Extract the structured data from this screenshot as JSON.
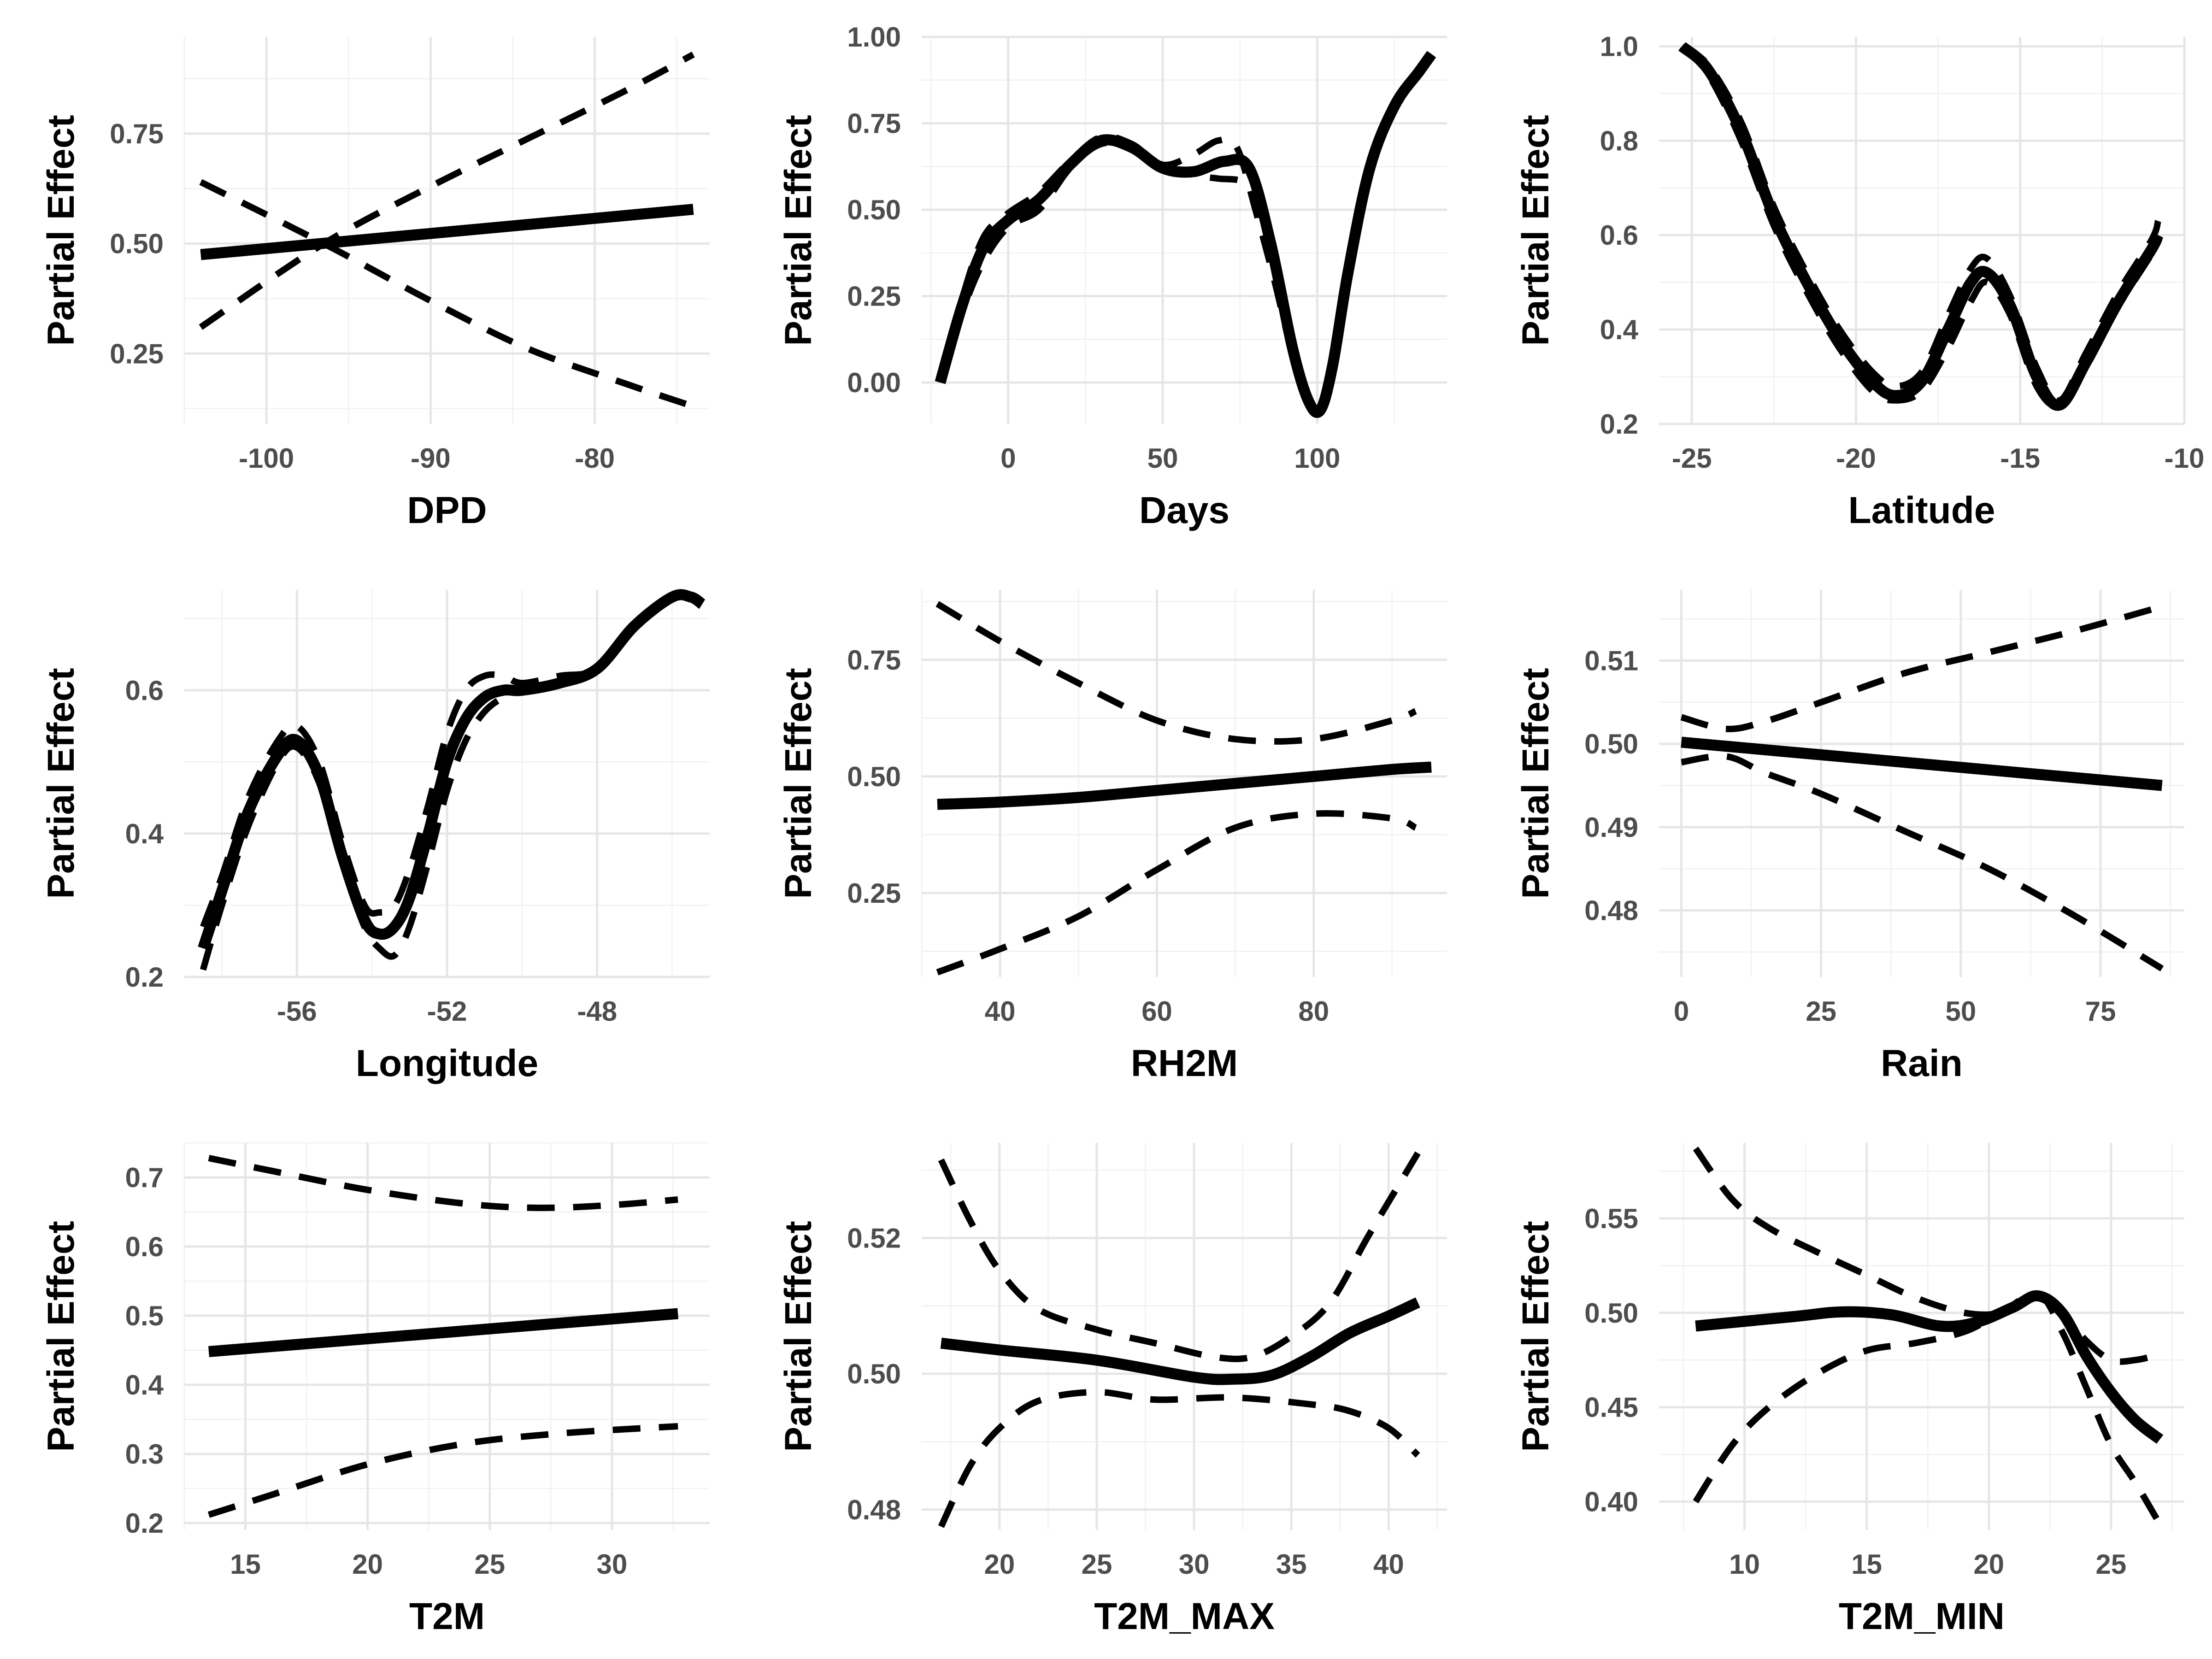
{
  "chart_data": [
    {
      "type": "line",
      "xlabel": "DPD",
      "ylabel": "Partial Effect",
      "xlim": [
        -105,
        -73
      ],
      "ylim": [
        0.09,
        0.97
      ],
      "xticks": [
        -100,
        -90,
        -80
      ],
      "xtick_labels": [
        "-100",
        "-90",
        "-80"
      ],
      "yticks": [
        0.25,
        0.5,
        0.75
      ],
      "ytick_labels": [
        "0.25",
        "0.50",
        "0.75"
      ],
      "series": [
        {
          "role": "estimate",
          "x": [
            -104,
            -74
          ],
          "y": [
            0.475,
            0.578
          ]
        },
        {
          "role": "lower",
          "x": [
            -104,
            -96.5,
            -90,
            -84,
            -78,
            -74
          ],
          "y": [
            0.64,
            0.5,
            0.37,
            0.26,
            0.18,
            0.13
          ]
        },
        {
          "role": "upper",
          "x": [
            -104,
            -96.5,
            -90,
            -84,
            -78,
            -74
          ],
          "y": [
            0.31,
            0.5,
            0.63,
            0.74,
            0.85,
            0.93
          ]
        }
      ]
    },
    {
      "type": "line",
      "xlabel": "Days",
      "ylabel": "Partial Effect",
      "xlim": [
        -28,
        142
      ],
      "ylim": [
        -0.12,
        1.0
      ],
      "xticks": [
        0,
        50,
        100
      ],
      "xtick_labels": [
        "0",
        "50",
        "100"
      ],
      "yticks": [
        0,
        0.25,
        0.5,
        0.75,
        1.0
      ],
      "ytick_labels": [
        "0.00",
        "0.25",
        "0.50",
        "0.75",
        "1.00"
      ],
      "series": [
        {
          "role": "estimate",
          "x": [
            -22,
            -15,
            -8,
            0,
            10,
            20,
            30,
            40,
            50,
            60,
            70,
            78,
            85,
            92,
            97,
            101,
            105,
            110,
            117,
            125,
            133,
            137
          ],
          "y": [
            0.0,
            0.22,
            0.39,
            0.47,
            0.53,
            0.63,
            0.7,
            0.68,
            0.62,
            0.61,
            0.64,
            0.62,
            0.4,
            0.1,
            -0.05,
            -0.08,
            0.05,
            0.32,
            0.62,
            0.8,
            0.9,
            0.95
          ]
        },
        {
          "role": "lower",
          "x": [
            -22,
            -15,
            -8,
            0,
            10,
            20,
            30,
            40,
            50,
            60,
            68,
            76,
            80,
            86,
            92,
            97,
            101,
            105,
            110,
            117,
            125,
            133,
            137
          ],
          "y": [
            0.0,
            0.2,
            0.35,
            0.45,
            0.5,
            0.62,
            0.69,
            0.68,
            0.63,
            0.6,
            0.59,
            0.58,
            0.52,
            0.35,
            0.1,
            -0.05,
            -0.08,
            0.05,
            0.32,
            0.62,
            0.8,
            0.9,
            0.95
          ]
        },
        {
          "role": "upper",
          "x": [
            -22,
            -15,
            -8,
            0,
            10,
            20,
            30,
            40,
            50,
            60,
            68,
            74,
            80,
            86,
            92,
            97,
            101,
            105,
            110,
            117,
            125,
            133,
            137
          ],
          "y": [
            0.0,
            0.24,
            0.42,
            0.49,
            0.55,
            0.64,
            0.71,
            0.69,
            0.63,
            0.66,
            0.7,
            0.68,
            0.5,
            0.3,
            0.08,
            -0.05,
            -0.08,
            0.05,
            0.32,
            0.62,
            0.8,
            0.9,
            0.95
          ]
        }
      ]
    },
    {
      "type": "line",
      "xlabel": "Latitude",
      "ylabel": "Partial Effect",
      "xlim": [
        -26,
        -10
      ],
      "ylim": [
        0.2,
        1.02
      ],
      "xticks": [
        -25,
        -20,
        -15,
        -10
      ],
      "xtick_labels": [
        "-25",
        "-20",
        "-15",
        "-10"
      ],
      "yticks": [
        0.2,
        0.4,
        0.6,
        0.8,
        1.0
      ],
      "ytick_labels": [
        "0.2",
        "0.4",
        "0.6",
        "0.8",
        "1.0"
      ],
      "series": [
        {
          "role": "estimate",
          "x": [
            -25.3,
            -24.5,
            -23.5,
            -22.5,
            -21.5,
            -20.5,
            -19.5,
            -18.8,
            -18,
            -17.2,
            -16.5,
            -16,
            -15.3,
            -14.5,
            -13.8,
            -13,
            -12,
            -11,
            -10.8
          ],
          "y": [
            1.0,
            0.95,
            0.82,
            0.64,
            0.5,
            0.38,
            0.29,
            0.26,
            0.29,
            0.4,
            0.5,
            0.52,
            0.45,
            0.3,
            0.24,
            0.33,
            0.46,
            0.57,
            0.6
          ]
        },
        {
          "role": "lower",
          "x": [
            -25.3,
            -24.5,
            -23.5,
            -22.5,
            -21.5,
            -20.5,
            -19.5,
            -18.8,
            -18,
            -17.2,
            -16.5,
            -16,
            -15.3,
            -14.5,
            -13.8,
            -13,
            -12,
            -11,
            -10.8
          ],
          "y": [
            1.0,
            0.94,
            0.8,
            0.62,
            0.48,
            0.36,
            0.27,
            0.25,
            0.27,
            0.36,
            0.46,
            0.5,
            0.43,
            0.28,
            0.24,
            0.32,
            0.45,
            0.56,
            0.59
          ]
        },
        {
          "role": "upper",
          "x": [
            -25.3,
            -24.5,
            -23.5,
            -22.5,
            -21.5,
            -20.5,
            -19.5,
            -18.8,
            -18,
            -17.2,
            -16.5,
            -16,
            -15.3,
            -14.5,
            -13.8,
            -13,
            -12,
            -11,
            -10.8
          ],
          "y": [
            1.0,
            0.96,
            0.84,
            0.66,
            0.52,
            0.4,
            0.31,
            0.28,
            0.31,
            0.43,
            0.53,
            0.55,
            0.47,
            0.32,
            0.25,
            0.35,
            0.48,
            0.59,
            0.63
          ]
        }
      ]
    },
    {
      "type": "line",
      "xlabel": "Longitude",
      "ylabel": "Partial Effect",
      "xlim": [
        -59,
        -45
      ],
      "ylim": [
        0.2,
        0.74
      ],
      "xticks": [
        -56,
        -52,
        -48
      ],
      "xtick_labels": [
        "-56",
        "-52",
        "-48"
      ],
      "yticks": [
        0.2,
        0.4,
        0.6
      ],
      "ytick_labels": [
        "0.2",
        "0.4",
        "0.6"
      ],
      "series": [
        {
          "role": "estimate",
          "x": [
            -58.5,
            -58,
            -57.3,
            -56.5,
            -56,
            -55.4,
            -54.8,
            -54.2,
            -53.8,
            -53.4,
            -53,
            -52.5,
            -52,
            -51.5,
            -51,
            -50.5,
            -50,
            -49,
            -48,
            -47,
            -46,
            -45.5,
            -45.2
          ],
          "y": [
            0.24,
            0.32,
            0.43,
            0.51,
            0.53,
            0.48,
            0.37,
            0.28,
            0.26,
            0.27,
            0.31,
            0.4,
            0.5,
            0.56,
            0.59,
            0.6,
            0.6,
            0.61,
            0.63,
            0.69,
            0.73,
            0.73,
            0.72
          ]
        },
        {
          "role": "lower",
          "x": [
            -58.5,
            -58,
            -57.3,
            -56.5,
            -56,
            -55.4,
            -54.8,
            -54.2,
            -53.8,
            -53.4,
            -53,
            -52.5,
            -52,
            -51.5,
            -51,
            -50.5,
            -50,
            -49,
            -48,
            -47,
            -46,
            -45.5,
            -45.2
          ],
          "y": [
            0.21,
            0.3,
            0.41,
            0.5,
            0.52,
            0.47,
            0.36,
            0.27,
            0.24,
            0.23,
            0.27,
            0.36,
            0.46,
            0.53,
            0.57,
            0.59,
            0.6,
            0.61,
            0.63,
            0.69,
            0.73,
            0.73,
            0.72
          ]
        },
        {
          "role": "upper",
          "x": [
            -58.5,
            -58,
            -57.3,
            -56.5,
            -56,
            -55.4,
            -54.8,
            -54.2,
            -53.8,
            -53.4,
            -53,
            -52.5,
            -52,
            -51.5,
            -51,
            -50.5,
            -50,
            -49,
            -48,
            -47,
            -46,
            -45.5,
            -45.2
          ],
          "y": [
            0.27,
            0.34,
            0.45,
            0.53,
            0.55,
            0.5,
            0.39,
            0.3,
            0.29,
            0.3,
            0.35,
            0.44,
            0.54,
            0.6,
            0.62,
            0.62,
            0.61,
            0.62,
            0.63,
            0.69,
            0.73,
            0.73,
            0.72
          ]
        }
      ]
    },
    {
      "type": "line",
      "xlabel": "RH2M",
      "ylabel": "Partial Effect",
      "xlim": [
        30,
        97
      ],
      "ylim": [
        0.07,
        0.9
      ],
      "xticks": [
        40,
        60,
        80
      ],
      "xtick_labels": [
        "40",
        "60",
        "80"
      ],
      "yticks": [
        0.25,
        0.5,
        0.75
      ],
      "ytick_labels": [
        "0.25",
        "0.50",
        "0.75"
      ],
      "series": [
        {
          "role": "estimate",
          "x": [
            32,
            40,
            50,
            60,
            70,
            80,
            90,
            95
          ],
          "y": [
            0.44,
            0.445,
            0.455,
            0.47,
            0.485,
            0.5,
            0.515,
            0.52
          ]
        },
        {
          "role": "lower",
          "x": [
            32,
            40,
            50,
            60,
            70,
            80,
            90,
            93
          ],
          "y": [
            0.08,
            0.13,
            0.2,
            0.3,
            0.39,
            0.42,
            0.41,
            0.39
          ]
        },
        {
          "role": "upper",
          "x": [
            32,
            40,
            50,
            60,
            70,
            80,
            90,
            93
          ],
          "y": [
            0.87,
            0.79,
            0.7,
            0.62,
            0.58,
            0.58,
            0.62,
            0.64
          ]
        }
      ]
    },
    {
      "type": "line",
      "xlabel": "Rain",
      "ylabel": "Partial Effect",
      "xlim": [
        -4,
        90
      ],
      "ylim": [
        0.472,
        0.5185
      ],
      "xticks": [
        0,
        25,
        50,
        75
      ],
      "xtick_labels": [
        "0",
        "25",
        "50",
        "75"
      ],
      "yticks": [
        0.48,
        0.49,
        0.5,
        0.51
      ],
      "ytick_labels": [
        "0.48",
        "0.49",
        "0.50",
        "0.51"
      ],
      "series": [
        {
          "role": "estimate",
          "x": [
            0,
            86
          ],
          "y": [
            0.5002,
            0.495
          ]
        },
        {
          "role": "lower",
          "x": [
            0,
            8,
            15,
            25,
            40,
            55,
            70,
            86
          ],
          "y": [
            0.4978,
            0.4985,
            0.4965,
            0.494,
            0.4895,
            0.485,
            0.4795,
            0.473
          ]
        },
        {
          "role": "upper",
          "x": [
            0,
            8,
            15,
            25,
            40,
            55,
            70,
            86
          ],
          "y": [
            0.5032,
            0.5018,
            0.5027,
            0.505,
            0.5085,
            0.511,
            0.5135,
            0.5165
          ]
        }
      ]
    },
    {
      "type": "line",
      "xlabel": "T2M",
      "ylabel": "Partial Effect",
      "xlim": [
        12.5,
        34
      ],
      "ylim": [
        0.19,
        0.75
      ],
      "xticks": [
        15,
        20,
        25,
        30
      ],
      "xtick_labels": [
        "15",
        "20",
        "25",
        "30"
      ],
      "yticks": [
        0.2,
        0.3,
        0.4,
        0.5,
        0.6,
        0.7
      ],
      "ytick_labels": [
        "0.2",
        "0.3",
        "0.4",
        "0.5",
        "0.6",
        "0.7"
      ],
      "series": [
        {
          "role": "estimate",
          "x": [
            13.5,
            32.7
          ],
          "y": [
            0.448,
            0.503
          ]
        },
        {
          "role": "lower",
          "x": [
            13.5,
            16,
            20,
            24,
            28,
            32.7
          ],
          "y": [
            0.212,
            0.24,
            0.285,
            0.315,
            0.33,
            0.34
          ]
        },
        {
          "role": "upper",
          "x": [
            13.5,
            16,
            20,
            24,
            27,
            30,
            32.7
          ],
          "y": [
            0.728,
            0.71,
            0.682,
            0.662,
            0.656,
            0.66,
            0.668
          ]
        }
      ]
    },
    {
      "type": "line",
      "xlabel": "T2M_MAX",
      "ylabel": "Partial Effect",
      "xlim": [
        16,
        43
      ],
      "ylim": [
        0.477,
        0.534
      ],
      "xticks": [
        20,
        25,
        30,
        35,
        40
      ],
      "xtick_labels": [
        "20",
        "25",
        "30",
        "35",
        "40"
      ],
      "yticks": [
        0.48,
        0.5,
        0.52
      ],
      "ytick_labels": [
        "0.48",
        "0.50",
        "0.52"
      ],
      "series": [
        {
          "role": "estimate",
          "x": [
            17,
            20,
            25,
            30,
            32,
            34,
            36,
            38,
            40,
            41.5
          ],
          "y": [
            0.5045,
            0.5035,
            0.502,
            0.4995,
            0.4992,
            0.4998,
            0.5025,
            0.506,
            0.5085,
            0.5105
          ]
        },
        {
          "role": "lower",
          "x": [
            17,
            18.5,
            20,
            22,
            25,
            28,
            32,
            36,
            38,
            40,
            41.5
          ],
          "y": [
            0.4775,
            0.4865,
            0.492,
            0.496,
            0.4973,
            0.4962,
            0.4965,
            0.4955,
            0.4945,
            0.492,
            0.488
          ]
        },
        {
          "role": "upper",
          "x": [
            17,
            18.5,
            20,
            22,
            25,
            28,
            31,
            33,
            35,
            37,
            39,
            41.5
          ],
          "y": [
            0.5315,
            0.5225,
            0.5152,
            0.5095,
            0.5065,
            0.5045,
            0.5025,
            0.5025,
            0.5055,
            0.5105,
            0.5205,
            0.5325
          ]
        }
      ]
    },
    {
      "type": "line",
      "xlabel": "T2M_MIN",
      "ylabel": "Partial Effect",
      "xlim": [
        6.5,
        28
      ],
      "ylim": [
        0.385,
        0.59
      ],
      "xticks": [
        10,
        15,
        20,
        25
      ],
      "xtick_labels": [
        "10",
        "15",
        "20",
        "25"
      ],
      "yticks": [
        0.4,
        0.45,
        0.5,
        0.55
      ],
      "ytick_labels": [
        "0.40",
        "0.45",
        "0.50",
        "0.55"
      ],
      "series": [
        {
          "role": "estimate",
          "x": [
            8,
            12,
            14,
            16,
            18,
            19.5,
            21,
            22,
            23,
            24,
            25,
            26,
            27
          ],
          "y": [
            0.493,
            0.498,
            0.5005,
            0.499,
            0.493,
            0.495,
            0.503,
            0.509,
            0.5,
            0.477,
            0.458,
            0.443,
            0.433
          ]
        },
        {
          "role": "lower",
          "x": [
            8,
            9.5,
            11,
            13,
            15,
            17,
            19,
            20.5,
            22,
            23,
            24,
            25,
            26,
            27
          ],
          "y": [
            0.4,
            0.43,
            0.45,
            0.468,
            0.48,
            0.484,
            0.49,
            0.5,
            0.51,
            0.49,
            0.46,
            0.43,
            0.41,
            0.388
          ]
        },
        {
          "role": "upper",
          "x": [
            8,
            9.5,
            11,
            13,
            15,
            17,
            19,
            20.5,
            22,
            23,
            24,
            25,
            26,
            27
          ],
          "y": [
            0.587,
            0.56,
            0.545,
            0.532,
            0.52,
            0.508,
            0.5,
            0.5,
            0.508,
            0.5,
            0.485,
            0.475,
            0.475,
            0.478
          ]
        }
      ]
    }
  ]
}
